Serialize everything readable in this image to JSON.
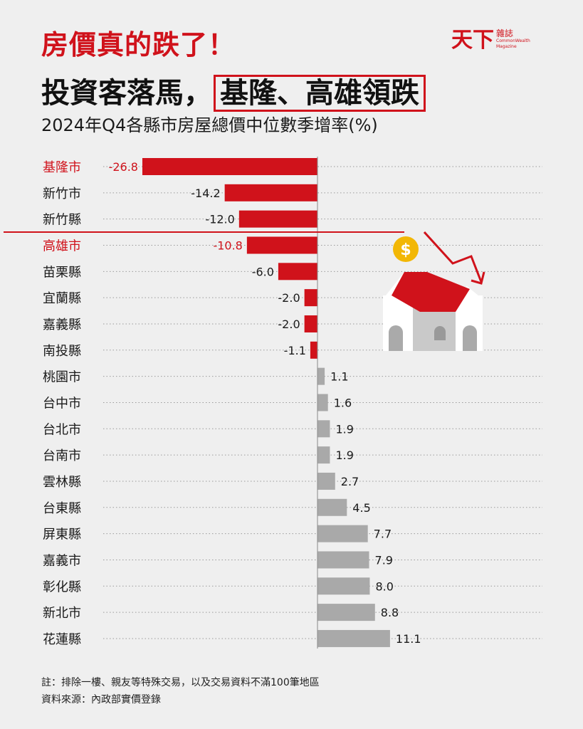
{
  "header": {
    "title_red": "房價真的跌了！",
    "title_main_prefix": "投資客落馬，",
    "title_main_boxed": "基隆、高雄領跌",
    "subtitle": "2024年Q4各縣市房屋總價中位數季增率(%)"
  },
  "logo": {
    "mark": "天下",
    "zh": "雜誌",
    "en1": "CommonWealth",
    "en2": "Magazine"
  },
  "chart_data": {
    "type": "bar",
    "orientation": "horizontal",
    "title": "2024年Q4各縣市房屋總價中位數季增率(%)",
    "categories": [
      "基隆市",
      "新竹市",
      "新竹縣",
      "高雄市",
      "苗栗縣",
      "宜蘭縣",
      "嘉義縣",
      "南投縣",
      "桃園市",
      "台中市",
      "台北市",
      "台南市",
      "雲林縣",
      "台東縣",
      "屏東縣",
      "嘉義市",
      "彰化縣",
      "新北市",
      "花蓮縣"
    ],
    "values": [
      -26.8,
      -14.2,
      -12.0,
      -10.8,
      -6.0,
      -2.0,
      -2.0,
      -1.1,
      1.1,
      1.6,
      1.9,
      1.9,
      2.7,
      4.5,
      7.7,
      7.9,
      8.0,
      8.8,
      11.1
    ],
    "highlighted": [
      "基隆市",
      "高雄市"
    ],
    "colors": {
      "negative": "#d0121b",
      "positive": "#a9a9a9",
      "highlight_label": "#d0121b"
    },
    "xlim": [
      -26.8,
      34
    ]
  },
  "footer": {
    "note": "註：排除一樓、親友等特殊交易，以及交易資料不滿100筆地區",
    "source": "資料來源：內政部實價登錄"
  }
}
